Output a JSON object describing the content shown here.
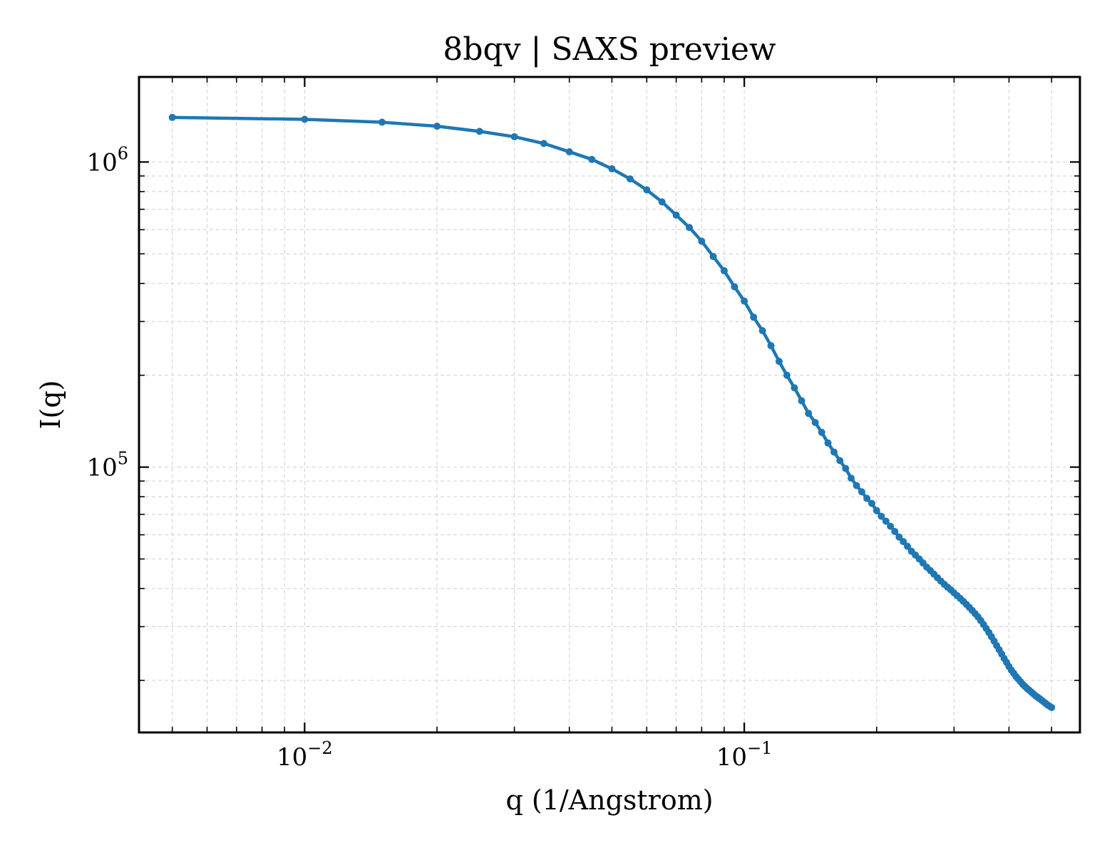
{
  "chart_data": {
    "type": "line",
    "title": "8bqv | SAXS preview",
    "xlabel": "q (1/Angstrom)",
    "ylabel": "I(q)",
    "xscale": "log",
    "yscale": "log",
    "xlim": [
      0.0042,
      0.58
    ],
    "ylim": [
      13500,
      1900000
    ],
    "xticks": [
      {
        "value": 0.01,
        "base": "10",
        "exp": "−2"
      },
      {
        "value": 0.1,
        "base": "10",
        "exp": "−1"
      }
    ],
    "yticks": [
      {
        "value": 100000,
        "base": "10",
        "exp": "5"
      },
      {
        "value": 1000000,
        "base": "10",
        "exp": "6"
      }
    ],
    "grid": true,
    "legend": "none",
    "series": [
      {
        "color": "#1f77b4",
        "marker": "dot",
        "x": [
          0.005,
          0.01,
          0.015,
          0.02,
          0.025,
          0.03,
          0.035,
          0.04,
          0.045,
          0.05,
          0.055,
          0.06,
          0.065,
          0.07,
          0.075,
          0.08,
          0.085,
          0.09,
          0.095,
          0.1,
          0.105,
          0.11,
          0.115,
          0.12,
          0.125,
          0.13,
          0.135,
          0.14,
          0.145,
          0.15,
          0.155,
          0.16,
          0.165,
          0.17,
          0.175,
          0.18,
          0.185,
          0.19,
          0.195,
          0.2,
          0.205,
          0.21,
          0.215,
          0.22,
          0.225,
          0.23,
          0.235,
          0.24,
          0.245,
          0.25,
          0.255,
          0.26,
          0.265,
          0.27,
          0.275,
          0.28,
          0.285,
          0.29,
          0.295,
          0.3,
          0.305,
          0.31,
          0.315,
          0.32,
          0.325,
          0.33,
          0.335,
          0.34,
          0.345,
          0.35,
          0.355,
          0.36,
          0.365,
          0.37,
          0.375,
          0.38,
          0.385,
          0.39,
          0.395,
          0.4,
          0.405,
          0.41,
          0.415,
          0.42,
          0.425,
          0.43,
          0.435,
          0.44,
          0.445,
          0.45,
          0.455,
          0.46,
          0.465,
          0.47,
          0.475,
          0.48,
          0.485,
          0.49,
          0.495,
          0.5
        ],
        "y": [
          1400000,
          1380000,
          1350000,
          1310000,
          1260000,
          1210000,
          1150000,
          1080000,
          1020000,
          950000,
          880000,
          810000,
          740000,
          670000,
          610000,
          550000,
          490000,
          440000,
          390000,
          350000,
          310000,
          280000,
          250000,
          222000,
          200000,
          182000,
          165000,
          150000,
          140000,
          130000,
          120000,
          112000,
          105000,
          99000,
          92000,
          87000,
          83000,
          79000,
          76000,
          72000,
          69000,
          66500,
          64000,
          61500,
          59000,
          57000,
          55000,
          53000,
          51500,
          50000,
          48500,
          47000,
          45800,
          44600,
          43400,
          42300,
          41300,
          40400,
          39600,
          38700,
          37900,
          37100,
          36300,
          35500,
          34700,
          33900,
          33100,
          32300,
          31400,
          30500,
          29600,
          28700,
          27800,
          26900,
          26000,
          25200,
          24400,
          23600,
          22900,
          22200,
          21600,
          21100,
          20600,
          20200,
          19800,
          19400,
          19100,
          18800,
          18550,
          18300,
          18050,
          17800,
          17600,
          17400,
          17200,
          17000,
          16800,
          16600,
          16450,
          16300
        ]
      }
    ]
  }
}
